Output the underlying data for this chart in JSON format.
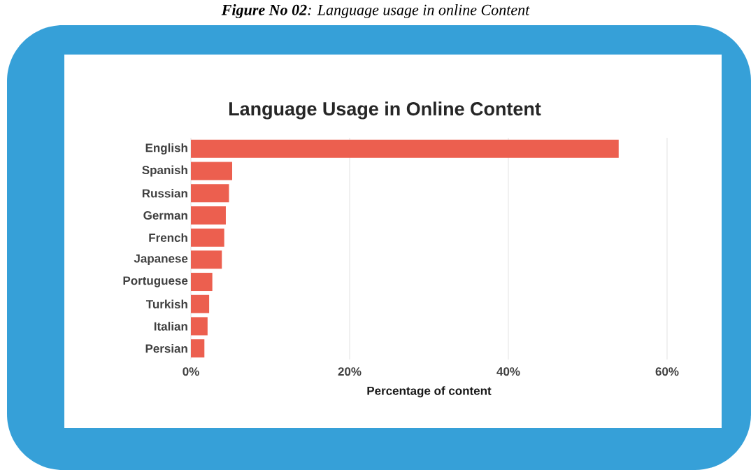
{
  "chart_data": {
    "type": "bar",
    "orientation": "horizontal",
    "title": "Language Usage in Online Content",
    "xlabel": "Percentage of content",
    "annotations": [
      "**Figure No 02**: Language usage in online Content"
    ],
    "categories": [
      "English",
      "Spanish",
      "Russian",
      "German",
      "French",
      "Japanese",
      "Portuguese",
      "Turkish",
      "Italian",
      "Persian"
    ],
    "values": [
      53.9,
      5.2,
      4.8,
      4.4,
      4.2,
      3.9,
      2.7,
      2.3,
      2.1,
      1.7
    ],
    "color": "#ec5f4f",
    "xlim": [
      0,
      60
    ],
    "xticks": [
      {
        "value": 0,
        "label": "0%"
      },
      {
        "value": 20,
        "label": "20%"
      },
      {
        "value": 40,
        "label": "40%"
      },
      {
        "value": 60,
        "label": "60%"
      }
    ],
    "grid": "x"
  }
}
